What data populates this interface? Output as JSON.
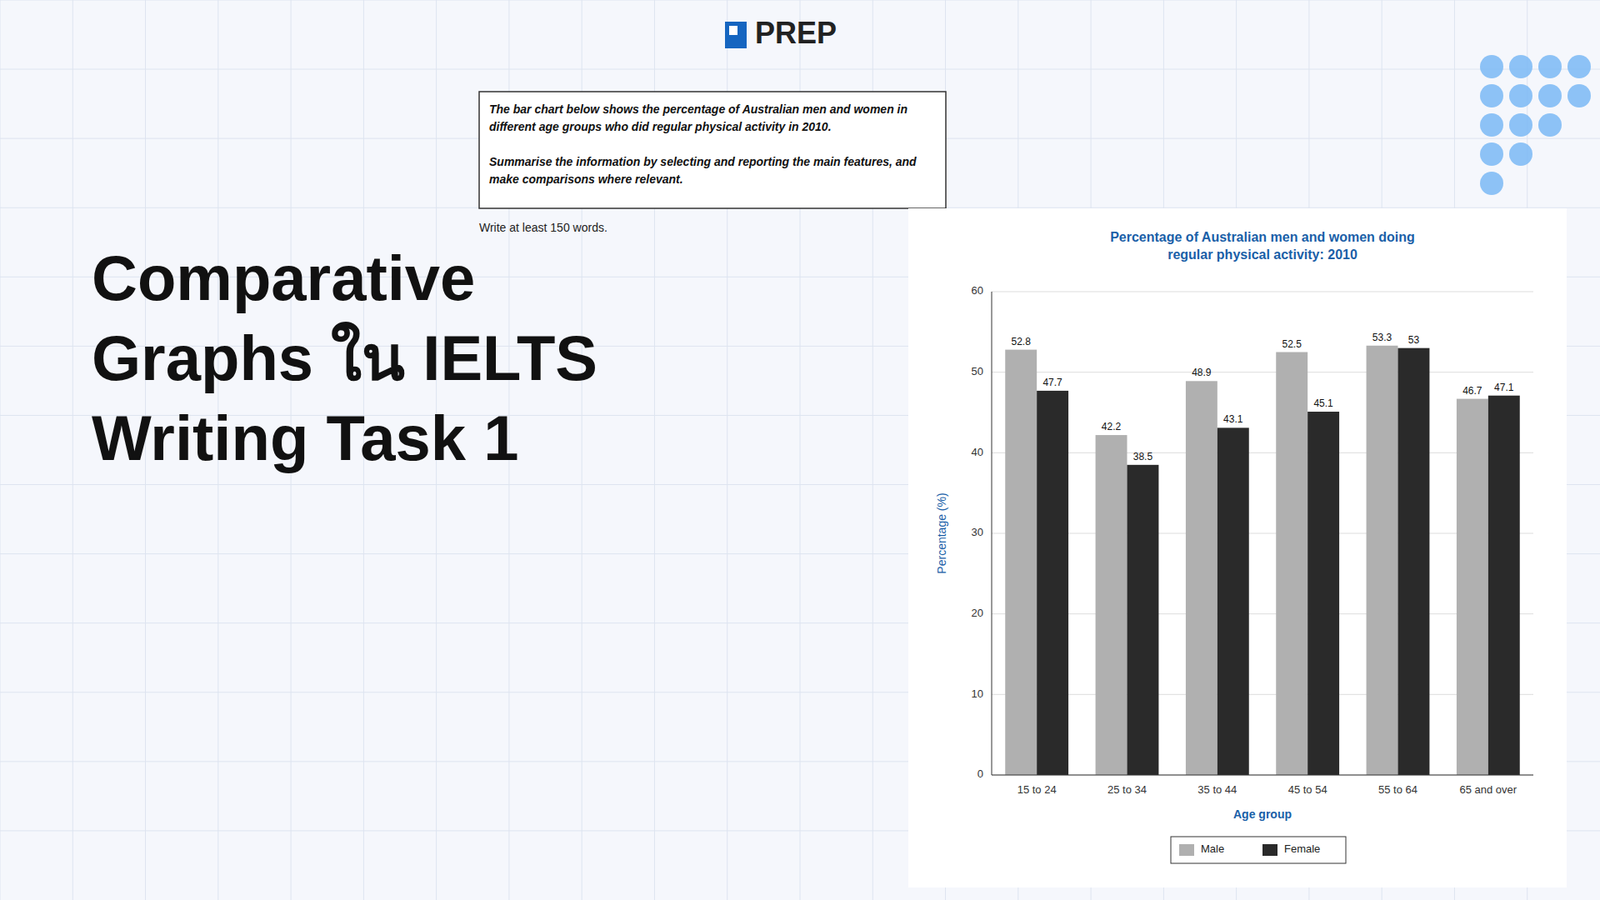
{
  "logo_text": "PREP",
  "heading": "Comparative\nGraphs ใน IELTS\nWriting Task 1",
  "task_text": "The bar chart below shows the percentage of Australian men and women in\ndifferent age groups who did regular physical activity in 2010.\n\nSummarise the information by selecting and reporting the main features, and\nmake comparisons where relevant.",
  "note": "Write at least 150 words.",
  "chart_data": {
    "type": "bar",
    "title": "Percentage of Australian men and women doing\nregular physical activity: 2010",
    "xlabel": "Age group",
    "ylabel": "Percentage (%)",
    "categories": [
      "15 to 24",
      "25 to 34",
      "35 to 44",
      "45 to 54",
      "55 to 64",
      "65 and over"
    ],
    "series": [
      {
        "name": "Male",
        "color": "#b0b0b0",
        "values": [
          52.8,
          42.2,
          48.9,
          52.5,
          53.3,
          46.7
        ]
      },
      {
        "name": "Female",
        "color": "#2a2a2a",
        "values": [
          47.7,
          38.5,
          43.1,
          45.1,
          53.0,
          47.1
        ]
      }
    ],
    "ylim": [
      0,
      60
    ],
    "yticks": [
      0,
      10,
      20,
      30,
      40,
      50,
      60
    ],
    "grid": true,
    "legend": "bottom",
    "data_labels": true
  }
}
